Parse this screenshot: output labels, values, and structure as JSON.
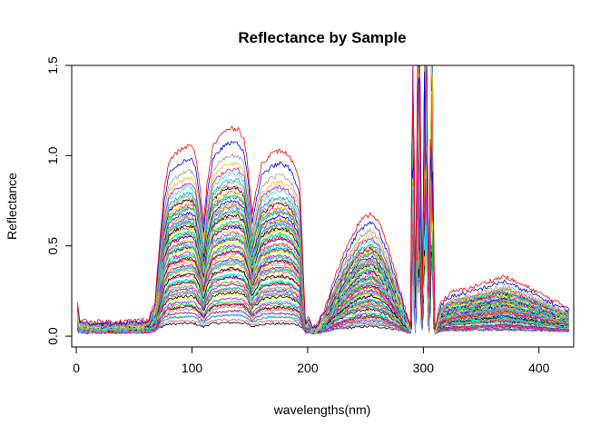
{
  "chart_data": {
    "type": "line",
    "title": "Reflectance by Sample",
    "xlabel": "wavelengths(nm)",
    "ylabel": "Reflectance",
    "xlim": [
      -4,
      430
    ],
    "ylim": [
      -0.06,
      1.5
    ],
    "x_ticks": [
      0,
      100,
      200,
      300,
      400
    ],
    "x_tick_labels": [
      "0",
      "100",
      "200",
      "300",
      "400"
    ],
    "y_ticks": [
      0.0,
      0.5,
      1.0,
      1.5
    ],
    "y_tick_labels": [
      "0.0",
      "0.5",
      "1.0",
      "1.5"
    ],
    "grid": false,
    "legend": "none",
    "series_count": 80,
    "palette": [
      "#000000",
      "#DF536B",
      "#61D04F",
      "#2297E6",
      "#28E2E5",
      "#CD0BBC",
      "#F5C710",
      "#9E9E9E",
      "#0000FF",
      "#FF0000",
      "#00CD00",
      "#00FFFF",
      "#FF00FF",
      "#FFFF00"
    ],
    "profile_x": [
      1,
      3,
      10,
      30,
      50,
      62,
      68,
      72,
      76,
      80,
      85,
      90,
      95,
      100,
      103,
      107,
      110,
      113,
      118,
      125,
      132,
      140,
      145,
      148,
      152,
      155,
      160,
      168,
      176,
      183,
      188,
      193,
      196,
      198,
      201,
      204,
      208,
      215,
      225,
      235,
      245,
      255,
      262,
      270,
      278,
      285,
      289,
      291,
      293,
      296,
      299,
      302,
      305,
      307,
      310,
      315,
      325,
      340,
      355,
      370,
      380,
      392,
      405,
      418,
      426
    ],
    "profile_y": [
      0.15,
      0.06,
      0.05,
      0.05,
      0.055,
      0.06,
      0.15,
      0.45,
      0.72,
      0.86,
      0.9,
      0.92,
      0.94,
      0.94,
      0.9,
      0.72,
      0.55,
      0.75,
      0.94,
      1.0,
      1.03,
      1.03,
      0.98,
      0.85,
      0.6,
      0.7,
      0.85,
      0.9,
      0.92,
      0.9,
      0.85,
      0.75,
      0.35,
      0.05,
      0.08,
      0.02,
      0.03,
      0.12,
      0.3,
      0.45,
      0.56,
      0.6,
      0.55,
      0.42,
      0.25,
      0.1,
      0.03,
      1.5,
      0.02,
      1.5,
      0.1,
      1.5,
      0.05,
      1.5,
      0.02,
      0.15,
      0.2,
      0.22,
      0.25,
      0.28,
      0.25,
      0.22,
      0.18,
      0.14,
      0.12
    ],
    "sample_scales": [
      0.05,
      0.07,
      0.09,
      0.1,
      0.11,
      0.12,
      0.13,
      0.14,
      0.15,
      0.16,
      0.17,
      0.18,
      0.19,
      0.2,
      0.21,
      0.22,
      0.23,
      0.24,
      0.25,
      0.26,
      0.27,
      0.28,
      0.29,
      0.3,
      0.31,
      0.32,
      0.33,
      0.34,
      0.35,
      0.36,
      0.37,
      0.38,
      0.39,
      0.4,
      0.41,
      0.42,
      0.43,
      0.44,
      0.45,
      0.46,
      0.47,
      0.48,
      0.49,
      0.5,
      0.51,
      0.52,
      0.53,
      0.54,
      0.55,
      0.56,
      0.57,
      0.58,
      0.59,
      0.6,
      0.61,
      0.62,
      0.63,
      0.64,
      0.65,
      0.66,
      0.67,
      0.68,
      0.69,
      0.7,
      0.71,
      0.72,
      0.73,
      0.74,
      0.75,
      0.76,
      0.77,
      0.78,
      0.8,
      0.82,
      0.85,
      0.88,
      0.92,
      0.96,
      1.02,
      1.09
    ]
  }
}
